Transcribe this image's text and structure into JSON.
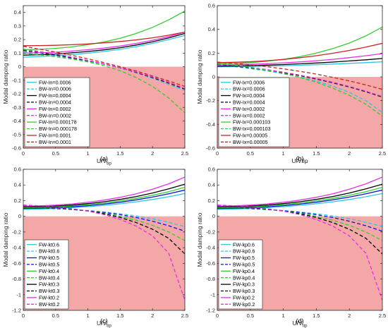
{
  "colors": {
    "neg_region": "#f4a7a7",
    "axis": "#262626",
    "cyan": "#2ec4e8",
    "blue": "#1010d8",
    "black": "#000000",
    "magenta": "#e62ee6",
    "green": "#33cc33",
    "red": "#cc2222"
  },
  "chart_data": [
    {
      "type": "line",
      "panel_label": "(a)",
      "xlabel": "U/V",
      "xlabel_sub": "tip",
      "ylabel": "Modal damping ratio",
      "xlim": [
        0,
        2.5
      ],
      "ylim": [
        -0.6,
        0.45
      ],
      "xticks": [
        0,
        0.5,
        1,
        1.5,
        2,
        2.5
      ],
      "xtick_labels": [
        "0",
        "0.5",
        "1",
        "1.5",
        "2",
        "2.5"
      ],
      "yticks": [
        -0.6,
        -0.5,
        -0.4,
        -0.3,
        -0.2,
        -0.1,
        0,
        0.1,
        0.2,
        0.3,
        0.4
      ],
      "ytick_labels": [
        "-0.6",
        "-0.5",
        "-0.4",
        "-0.3",
        "-0.2",
        "-0.1",
        "0",
        "0.1",
        "0.2",
        "0.3",
        "0.4"
      ],
      "negative_region_shaded": true,
      "legend_position": "bottom-left",
      "x": [
        0,
        0.25,
        0.5,
        0.75,
        1,
        1.25,
        1.5,
        1.75,
        2,
        2.25,
        2.5
      ],
      "series": [
        {
          "name": "FW-In=0.0006",
          "color": "cyan",
          "dash": false,
          "values": [
            0.07,
            0.075,
            0.082,
            0.09,
            0.1,
            0.112,
            0.128,
            0.148,
            0.172,
            0.2,
            0.23
          ]
        },
        {
          "name": "BW-In=0.0006",
          "color": "cyan",
          "dash": true,
          "values": [
            0.11,
            0.095,
            0.08,
            0.062,
            0.042,
            0.018,
            -0.01,
            -0.045,
            -0.085,
            -0.13,
            -0.175
          ]
        },
        {
          "name": "FW-In=0.0004",
          "color": "black",
          "dash": false,
          "values": [
            0.085,
            0.088,
            0.094,
            0.102,
            0.112,
            0.124,
            0.14,
            0.16,
            0.184,
            0.212,
            0.245
          ]
        },
        {
          "name": "BW-In=0.0004",
          "color": "black",
          "dash": true,
          "values": [
            0.12,
            0.104,
            0.086,
            0.066,
            0.044,
            0.02,
            -0.008,
            -0.042,
            -0.08,
            -0.12,
            -0.165
          ]
        },
        {
          "name": "FW-In=0.0002",
          "color": "magenta",
          "dash": false,
          "values": [
            0.1,
            0.102,
            0.107,
            0.115,
            0.125,
            0.137,
            0.152,
            0.172,
            0.195,
            0.222,
            0.255
          ]
        },
        {
          "name": "BW-In=0.0002",
          "color": "magenta",
          "dash": true,
          "values": [
            0.13,
            0.112,
            0.092,
            0.07,
            0.046,
            0.02,
            -0.008,
            -0.04,
            -0.076,
            -0.115,
            -0.16
          ]
        },
        {
          "name": "FW-In=0.000178",
          "color": "green",
          "dash": false,
          "values": [
            0.125,
            0.128,
            0.135,
            0.146,
            0.162,
            0.183,
            0.21,
            0.245,
            0.29,
            0.345,
            0.41
          ]
        },
        {
          "name": "BW-In=0.000178",
          "color": "green",
          "dash": true,
          "values": [
            0.1,
            0.087,
            0.073,
            0.056,
            0.035,
            0.008,
            -0.03,
            -0.08,
            -0.145,
            -0.23,
            -0.34
          ]
        },
        {
          "name": "FW-In=0.0001",
          "color": "red",
          "dash": false,
          "values": [
            0.155,
            0.156,
            0.158,
            0.162,
            0.168,
            0.176,
            0.186,
            0.198,
            0.213,
            0.232,
            0.255
          ]
        },
        {
          "name": "BW-In=0.0001",
          "color": "red",
          "dash": true,
          "values": [
            0.15,
            0.13,
            0.108,
            0.084,
            0.058,
            0.03,
            0.0,
            -0.032,
            -0.068,
            -0.105,
            -0.145
          ]
        }
      ]
    },
    {
      "type": "line",
      "panel_label": "(b)",
      "xlabel": "U/Vtip",
      "xlabel_sub": "",
      "ylabel": "Modal damping ratio",
      "xlim": [
        0,
        2.5
      ],
      "ylim": [
        -0.6,
        0.6
      ],
      "xticks": [
        0,
        0.5,
        1,
        1.5,
        2,
        2.5
      ],
      "xtick_labels": [
        "0",
        "0.5",
        "1",
        "1.5",
        "2",
        "2.5"
      ],
      "yticks": [
        -0.6,
        -0.4,
        -0.2,
        0,
        0.2,
        0.4,
        0.6
      ],
      "ytick_labels": [
        "-0.6",
        "-0.4",
        "-0.2",
        "0",
        "0.2",
        "0.4",
        "0.6"
      ],
      "negative_region_shaded": true,
      "legend_position": "bottom-left",
      "x": [
        0,
        0.25,
        0.5,
        0.75,
        1,
        1.25,
        1.5,
        1.75,
        2,
        2.25,
        2.5
      ],
      "series": [
        {
          "name": "FW-Ix=0.0006",
          "color": "cyan",
          "dash": false,
          "values": [
            0.085,
            0.086,
            0.088,
            0.091,
            0.094,
            0.098,
            0.103,
            0.108,
            0.114,
            0.12,
            0.127
          ]
        },
        {
          "name": "BW-Ix=0.0006",
          "color": "cyan",
          "dash": true,
          "values": [
            0.1,
            0.087,
            0.07,
            0.05,
            0.026,
            -0.002,
            -0.036,
            -0.078,
            -0.13,
            -0.2,
            -0.3
          ]
        },
        {
          "name": "FW-Ix=0.0004",
          "color": "black",
          "dash": false,
          "values": [
            0.09,
            0.092,
            0.095,
            0.099,
            0.104,
            0.11,
            0.117,
            0.125,
            0.134,
            0.144,
            0.155
          ]
        },
        {
          "name": "BW-Ix=0.0004",
          "color": "black",
          "dash": true,
          "values": [
            0.105,
            0.092,
            0.076,
            0.057,
            0.035,
            0.01,
            -0.018,
            -0.05,
            -0.085,
            -0.125,
            -0.17
          ]
        },
        {
          "name": "FW-Ix=0.0002",
          "color": "magenta",
          "dash": false,
          "values": [
            0.1,
            0.102,
            0.106,
            0.111,
            0.118,
            0.126,
            0.136,
            0.148,
            0.162,
            0.178,
            0.196
          ]
        },
        {
          "name": "BW-Ix=0.0002",
          "color": "magenta",
          "dash": true,
          "values": [
            0.11,
            0.097,
            0.081,
            0.062,
            0.04,
            0.015,
            -0.013,
            -0.045,
            -0.08,
            -0.12,
            -0.165
          ]
        },
        {
          "name": "FW-Ix=0.000103",
          "color": "green",
          "dash": false,
          "values": [
            0.11,
            0.113,
            0.12,
            0.132,
            0.148,
            0.17,
            0.2,
            0.238,
            0.285,
            0.345,
            0.42
          ]
        },
        {
          "name": "BW-Ix=0.000103",
          "color": "green",
          "dash": true,
          "values": [
            0.115,
            0.1,
            0.08,
            0.056,
            0.028,
            -0.005,
            -0.045,
            -0.095,
            -0.155,
            -0.23,
            -0.33
          ]
        },
        {
          "name": "FW-Ix=0.00005",
          "color": "red",
          "dash": false,
          "values": [
            0.12,
            0.123,
            0.128,
            0.136,
            0.147,
            0.161,
            0.178,
            0.199,
            0.223,
            0.251,
            0.283
          ]
        },
        {
          "name": "BW-Ix=0.00005",
          "color": "red",
          "dash": true,
          "values": [
            0.125,
            0.114,
            0.101,
            0.086,
            0.068,
            0.047,
            0.023,
            -0.004,
            -0.034,
            -0.068,
            -0.105
          ]
        }
      ]
    },
    {
      "type": "line",
      "panel_label": "(c)",
      "xlabel": "U/V",
      "xlabel_sub": "tip",
      "ylabel": "Modal damping ratio",
      "xlim": [
        0,
        2.5
      ],
      "ylim": [
        -1.2,
        0.6
      ],
      "xticks": [
        0,
        0.5,
        1,
        1.5,
        2,
        2.5
      ],
      "xtick_labels": [
        "0",
        "0.5",
        "1",
        "1.5",
        "2",
        "2.5"
      ],
      "yticks": [
        -1.2,
        -1,
        -0.8,
        -0.6,
        -0.4,
        -0.2,
        0,
        0.2,
        0.4,
        0.6
      ],
      "ytick_labels": [
        "-1.2",
        "-1",
        "-0.8",
        "-0.6",
        "-0.4",
        "-0.2",
        "0",
        "0.2",
        "0.4",
        "0.6"
      ],
      "negative_region_shaded": true,
      "legend_position": "bottom-left",
      "x": [
        0,
        0.25,
        0.5,
        0.75,
        1,
        1.25,
        1.5,
        1.75,
        2,
        2.25,
        2.5
      ],
      "series": [
        {
          "name": "FW-kt0.6",
          "color": "cyan",
          "dash": false,
          "values": [
            0.09,
            0.093,
            0.1,
            0.11,
            0.123,
            0.14,
            0.16,
            0.185,
            0.215,
            0.25,
            0.29
          ]
        },
        {
          "name": "BW-kt0.6",
          "color": "cyan",
          "dash": true,
          "values": [
            0.11,
            0.105,
            0.098,
            0.088,
            0.074,
            0.056,
            0.033,
            0.004,
            -0.032,
            -0.076,
            -0.13
          ]
        },
        {
          "name": "FW-kt0.5",
          "color": "blue",
          "dash": false,
          "values": [
            0.1,
            0.103,
            0.11,
            0.121,
            0.136,
            0.155,
            0.18,
            0.21,
            0.245,
            0.287,
            0.335
          ]
        },
        {
          "name": "BW-kt0.5",
          "color": "blue",
          "dash": true,
          "values": [
            0.115,
            0.108,
            0.099,
            0.087,
            0.07,
            0.048,
            0.02,
            -0.016,
            -0.062,
            -0.12,
            -0.19
          ]
        },
        {
          "name": "FW-kt0.4",
          "color": "green",
          "dash": false,
          "values": [
            0.11,
            0.113,
            0.12,
            0.132,
            0.148,
            0.169,
            0.196,
            0.229,
            0.268,
            0.315,
            0.37
          ]
        },
        {
          "name": "BW-kt0.4",
          "color": "green",
          "dash": true,
          "values": [
            0.125,
            0.117,
            0.106,
            0.09,
            0.068,
            0.038,
            0.0,
            -0.05,
            -0.115,
            -0.2,
            -0.31
          ]
        },
        {
          "name": "FW-kt0.3",
          "color": "black",
          "dash": false,
          "values": [
            0.12,
            0.123,
            0.131,
            0.144,
            0.162,
            0.186,
            0.216,
            0.253,
            0.298,
            0.35,
            0.41
          ]
        },
        {
          "name": "BW-kt0.3",
          "color": "black",
          "dash": true,
          "values": [
            0.135,
            0.126,
            0.112,
            0.093,
            0.067,
            0.032,
            -0.015,
            -0.08,
            -0.165,
            -0.28,
            -0.48
          ]
        },
        {
          "name": "FW-kt0.2",
          "color": "magenta",
          "dash": false,
          "values": [
            0.13,
            0.134,
            0.143,
            0.158,
            0.179,
            0.207,
            0.243,
            0.288,
            0.345,
            0.415,
            0.5
          ]
        },
        {
          "name": "BW-kt0.2",
          "color": "magenta",
          "dash": true,
          "values": [
            0.145,
            0.135,
            0.12,
            0.098,
            0.066,
            0.022,
            -0.04,
            -0.125,
            -0.25,
            -0.47,
            -1.07
          ]
        }
      ]
    },
    {
      "type": "line",
      "panel_label": "(d)",
      "xlabel": "U/V",
      "xlabel_sub": "tip",
      "ylabel": "Modal damping ratio",
      "xlim": [
        0,
        2.5
      ],
      "ylim": [
        -1.2,
        0.6
      ],
      "xticks": [
        0,
        0.5,
        1,
        1.5,
        2,
        2.5
      ],
      "xtick_labels": [
        "0",
        "0.5",
        "1",
        "1.5",
        "2",
        "2.5"
      ],
      "yticks": [
        -1.2,
        -1,
        -0.8,
        -0.6,
        -0.4,
        -0.2,
        0,
        0.2,
        0.4,
        0.6
      ],
      "ytick_labels": [
        "-1.2",
        "-1",
        "-0.8",
        "-0.6",
        "-0.4",
        "-0.2",
        "0",
        "0.2",
        "0.4",
        "0.6"
      ],
      "negative_region_shaded": true,
      "legend_position": "bottom-left",
      "x": [
        0,
        0.25,
        0.5,
        0.75,
        1,
        1.25,
        1.5,
        1.75,
        2,
        2.25,
        2.5
      ],
      "series": [
        {
          "name": "FW-kp0.6",
          "color": "cyan",
          "dash": false,
          "values": [
            0.09,
            0.093,
            0.1,
            0.11,
            0.123,
            0.14,
            0.16,
            0.185,
            0.215,
            0.25,
            0.29
          ]
        },
        {
          "name": "BW-kp0.6",
          "color": "cyan",
          "dash": true,
          "values": [
            0.11,
            0.105,
            0.098,
            0.088,
            0.074,
            0.056,
            0.033,
            0.004,
            -0.032,
            -0.076,
            -0.13
          ]
        },
        {
          "name": "FW-kp0.5",
          "color": "blue",
          "dash": false,
          "values": [
            0.1,
            0.103,
            0.11,
            0.121,
            0.136,
            0.155,
            0.18,
            0.21,
            0.245,
            0.287,
            0.335
          ]
        },
        {
          "name": "BW-kp0.5",
          "color": "blue",
          "dash": true,
          "values": [
            0.115,
            0.108,
            0.099,
            0.087,
            0.07,
            0.048,
            0.02,
            -0.016,
            -0.062,
            -0.12,
            -0.19
          ]
        },
        {
          "name": "FW-kp0.4",
          "color": "green",
          "dash": false,
          "values": [
            0.11,
            0.113,
            0.12,
            0.132,
            0.148,
            0.169,
            0.196,
            0.229,
            0.268,
            0.315,
            0.37
          ]
        },
        {
          "name": "BW-kp0.4",
          "color": "green",
          "dash": true,
          "values": [
            0.125,
            0.117,
            0.106,
            0.09,
            0.068,
            0.038,
            0.0,
            -0.05,
            -0.115,
            -0.2,
            -0.31
          ]
        },
        {
          "name": "FW-kp0.3",
          "color": "black",
          "dash": false,
          "values": [
            0.12,
            0.123,
            0.131,
            0.144,
            0.162,
            0.186,
            0.216,
            0.253,
            0.298,
            0.35,
            0.41
          ]
        },
        {
          "name": "BW-kp0.3",
          "color": "black",
          "dash": true,
          "values": [
            0.135,
            0.126,
            0.112,
            0.093,
            0.067,
            0.032,
            -0.015,
            -0.08,
            -0.165,
            -0.28,
            -0.48
          ]
        },
        {
          "name": "FW-kp0.2",
          "color": "magenta",
          "dash": false,
          "values": [
            0.13,
            0.134,
            0.143,
            0.158,
            0.179,
            0.207,
            0.243,
            0.288,
            0.345,
            0.415,
            0.5
          ]
        },
        {
          "name": "BW-kp0.2",
          "color": "magenta",
          "dash": true,
          "values": [
            0.145,
            0.135,
            0.12,
            0.098,
            0.066,
            0.022,
            -0.04,
            -0.125,
            -0.25,
            -0.47,
            -1.07
          ]
        }
      ]
    }
  ]
}
